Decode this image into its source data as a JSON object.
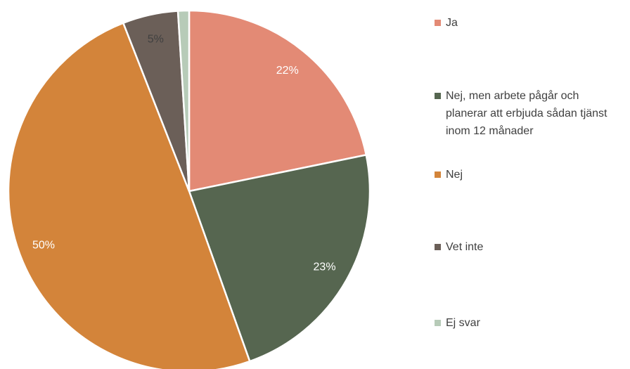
{
  "chart_data": {
    "type": "pie",
    "categories": [
      "Ja",
      "Nej, men arbete pågår och planerar att erbjuda sådan tjänst inom 12 månader",
      "Nej",
      "Vet inte",
      "Ej svar"
    ],
    "values": [
      22,
      23,
      50,
      5,
      1
    ],
    "value_labels": [
      "22%",
      "23%",
      "50%",
      "5%",
      null
    ],
    "colors": [
      "#e38a75",
      "#566650",
      "#d3843a",
      "#6b5f58",
      "#b7cbb8"
    ],
    "legend": "right"
  }
}
